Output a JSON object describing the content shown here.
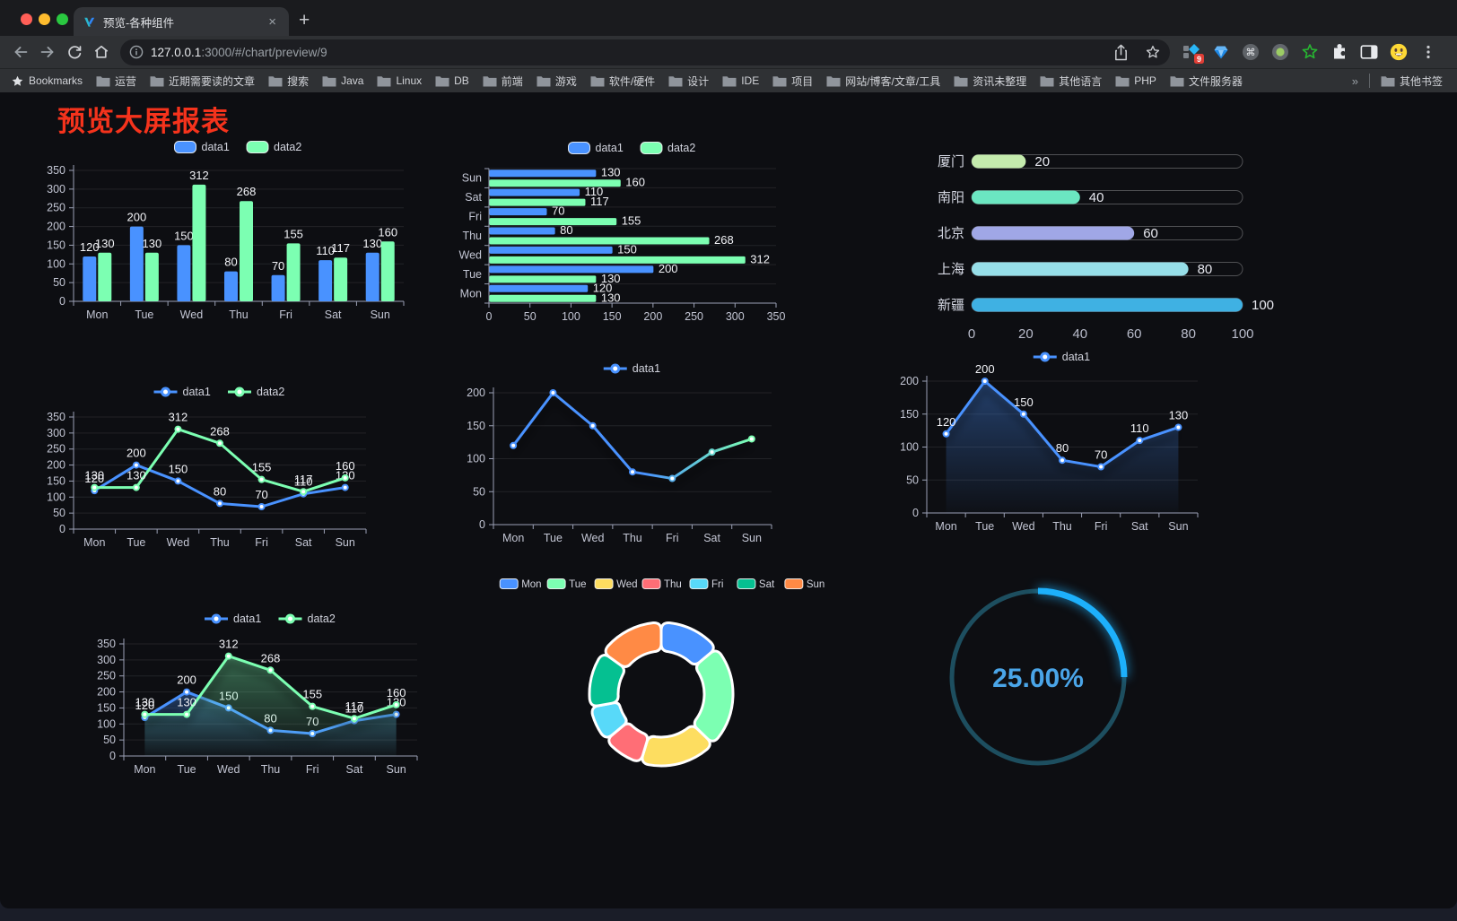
{
  "browser": {
    "tab": {
      "title": "预览-各种组件",
      "close_glyph": "×",
      "new_tab_glyph": "+"
    },
    "url": {
      "host": "127.0.0.1",
      "rest": ":3000/#/chart/preview/9"
    },
    "extensions_badge": "9",
    "bookmarks": {
      "star_label": "Bookmarks",
      "folders": [
        "运营",
        "近期需要读的文章",
        "搜索",
        "Java",
        "Linux",
        "DB",
        "前端",
        "游戏",
        "软件/硬件",
        "设计",
        "IDE",
        "项目",
        "网站/博客/文章/工具",
        "资讯未整理",
        "其他语言",
        "PHP",
        "文件服务器"
      ],
      "overflow_glyph": "»",
      "other_label": "其他书签"
    }
  },
  "page": {
    "title": "预览大屏报表",
    "title_color": "#f5331c",
    "background": "#0d0e12"
  },
  "palette": {
    "data1": "#4992ff",
    "data2": "#7cffb2"
  },
  "chart_data": [
    {
      "id": "bar-vertical",
      "type": "bar",
      "legend_position": "top",
      "categories": [
        "Mon",
        "Tue",
        "Wed",
        "Thu",
        "Fri",
        "Sat",
        "Sun"
      ],
      "series": [
        {
          "name": "data1",
          "color": "#4992ff",
          "values": [
            120,
            200,
            150,
            80,
            70,
            110,
            130
          ]
        },
        {
          "name": "data2",
          "color": "#7cffb2",
          "values": [
            130,
            130,
            312,
            268,
            155,
            117,
            160
          ]
        }
      ],
      "ylim": [
        0,
        350
      ],
      "y_ticks": [
        0,
        50,
        100,
        150,
        200,
        250,
        300,
        350
      ]
    },
    {
      "id": "bar-horizontal",
      "type": "bar",
      "orientation": "horizontal",
      "legend_position": "top",
      "categories": [
        "Sun",
        "Sat",
        "Fri",
        "Thu",
        "Wed",
        "Tue",
        "Mon"
      ],
      "series": [
        {
          "name": "data1",
          "color": "#4992ff",
          "values": [
            130,
            110,
            70,
            80,
            150,
            200,
            120
          ]
        },
        {
          "name": "data2",
          "color": "#7cffb2",
          "values": [
            160,
            117,
            155,
            268,
            312,
            130,
            130
          ]
        }
      ],
      "xlim": [
        0,
        350
      ],
      "x_ticks": [
        0,
        50,
        100,
        150,
        200,
        250,
        300,
        350
      ]
    },
    {
      "id": "capsule-progress",
      "type": "bar",
      "orientation": "horizontal-capsule",
      "rows": [
        {
          "label": "厦门",
          "value": 20,
          "color": "#c4ebad"
        },
        {
          "label": "南阳",
          "value": 40,
          "color": "#6be6c1"
        },
        {
          "label": "北京",
          "value": 60,
          "color": "#a0a7e6"
        },
        {
          "label": "上海",
          "value": 80,
          "color": "#96dee8"
        },
        {
          "label": "新疆",
          "value": 100,
          "color": "#3fb1e3"
        }
      ],
      "xlim": [
        0,
        100
      ],
      "x_ticks": [
        0,
        20,
        40,
        60,
        80,
        100
      ]
    },
    {
      "id": "line-two-series",
      "type": "line",
      "legend_position": "top",
      "value_labels": true,
      "categories": [
        "Mon",
        "Tue",
        "Wed",
        "Thu",
        "Fri",
        "Sat",
        "Sun"
      ],
      "series": [
        {
          "name": "data1",
          "color": "#4992ff",
          "values": [
            120,
            200,
            150,
            80,
            70,
            110,
            130
          ]
        },
        {
          "name": "data2",
          "color": "#7cffb2",
          "values": [
            130,
            130,
            312,
            268,
            155,
            117,
            160
          ]
        }
      ],
      "ylim": [
        0,
        350
      ],
      "y_ticks": [
        0,
        50,
        100,
        150,
        200,
        250,
        300,
        350
      ]
    },
    {
      "id": "line-gradient",
      "type": "line",
      "legend_position": "top",
      "value_labels": false,
      "categories": [
        "Mon",
        "Tue",
        "Wed",
        "Thu",
        "Fri",
        "Sat",
        "Sun"
      ],
      "series": [
        {
          "name": "data1",
          "color": "#4992ff",
          "color_end": "#7cffb2",
          "values": [
            120,
            200,
            150,
            80,
            70,
            110,
            130
          ]
        }
      ],
      "ylim": [
        0,
        200
      ],
      "y_ticks": [
        0,
        50,
        100,
        150,
        200
      ]
    },
    {
      "id": "area-single",
      "type": "area",
      "legend_position": "top",
      "value_labels": true,
      "categories": [
        "Mon",
        "Tue",
        "Wed",
        "Thu",
        "Fri",
        "Sat",
        "Sun"
      ],
      "series": [
        {
          "name": "data1",
          "color": "#4992ff",
          "values": [
            120,
            200,
            150,
            80,
            70,
            110,
            130
          ]
        }
      ],
      "ylim": [
        0,
        200
      ],
      "y_ticks": [
        0,
        50,
        100,
        150,
        200
      ]
    },
    {
      "id": "area-two-series",
      "type": "area",
      "legend_position": "top",
      "value_labels": true,
      "categories": [
        "Mon",
        "Tue",
        "Wed",
        "Thu",
        "Fri",
        "Sat",
        "Sun"
      ],
      "series": [
        {
          "name": "data1",
          "color": "#4992ff",
          "values": [
            120,
            200,
            150,
            80,
            70,
            110,
            130
          ]
        },
        {
          "name": "data2",
          "color": "#7cffb2",
          "values": [
            130,
            130,
            312,
            268,
            155,
            117,
            160
          ]
        }
      ],
      "ylim": [
        0,
        350
      ],
      "y_ticks": [
        0,
        50,
        100,
        150,
        200,
        250,
        300,
        350
      ]
    },
    {
      "id": "donut",
      "type": "pie",
      "legend_position": "top",
      "items": [
        {
          "label": "Mon",
          "value": 120,
          "color": "#4992ff"
        },
        {
          "label": "Tue",
          "value": 200,
          "color": "#7cffb2"
        },
        {
          "label": "Wed",
          "value": 150,
          "color": "#fddd60"
        },
        {
          "label": "Thu",
          "value": 80,
          "color": "#ff6e76"
        },
        {
          "label": "Fri",
          "value": 70,
          "color": "#58d9f9"
        },
        {
          "label": "Sat",
          "value": 110,
          "color": "#05c091"
        },
        {
          "label": "Sun",
          "value": 130,
          "color": "#ff8a45"
        }
      ]
    },
    {
      "id": "gauge",
      "type": "gauge",
      "percent": 25,
      "display": "25.00%",
      "color": "#1db0fb",
      "track_color": "#1d4e5f",
      "text_color": "#4aa5e8"
    }
  ]
}
